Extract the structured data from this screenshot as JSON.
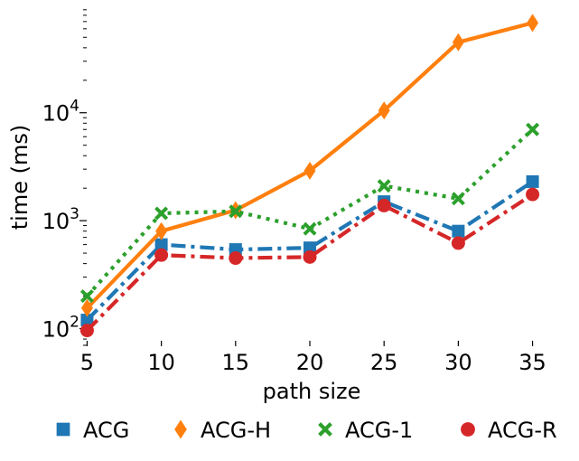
{
  "chart_data": {
    "type": "line",
    "title": "",
    "xlabel": "path size",
    "ylabel": "time (ms)",
    "yscale": "log",
    "ylim": [
      70,
      95000
    ],
    "xlim": [
      4,
      36
    ],
    "grid": false,
    "x": [
      5,
      10,
      15,
      20,
      25,
      30,
      35
    ],
    "x_tick_labels": [
      "5",
      "10",
      "15",
      "20",
      "25",
      "30",
      "35"
    ],
    "y_major_ticks": [
      {
        "value": 100,
        "base": "10",
        "exp": "2"
      },
      {
        "value": 1000,
        "base": "10",
        "exp": "3"
      },
      {
        "value": 10000,
        "base": "10",
        "exp": "4"
      }
    ],
    "legend_position": "bottom",
    "series": [
      {
        "name": "ACG",
        "color": "#1f77b4",
        "marker": "square",
        "linestyle": "dashdot",
        "values": [
          120,
          600,
          540,
          560,
          1500,
          800,
          2300
        ]
      },
      {
        "name": "ACG-H",
        "color": "#ff7f0e",
        "marker": "diamond",
        "linestyle": "solid",
        "values": [
          155,
          800,
          1250,
          2900,
          10500,
          45000,
          68000
        ]
      },
      {
        "name": "ACG-1",
        "color": "#2ca02c",
        "marker": "x",
        "linestyle": "dotted",
        "values": [
          200,
          1170,
          1220,
          840,
          2100,
          1600,
          7000
        ]
      },
      {
        "name": "ACG-R",
        "color": "#d62728",
        "marker": "circle",
        "linestyle": "dashdot",
        "values": [
          96,
          480,
          450,
          460,
          1380,
          620,
          1750
        ]
      }
    ]
  }
}
